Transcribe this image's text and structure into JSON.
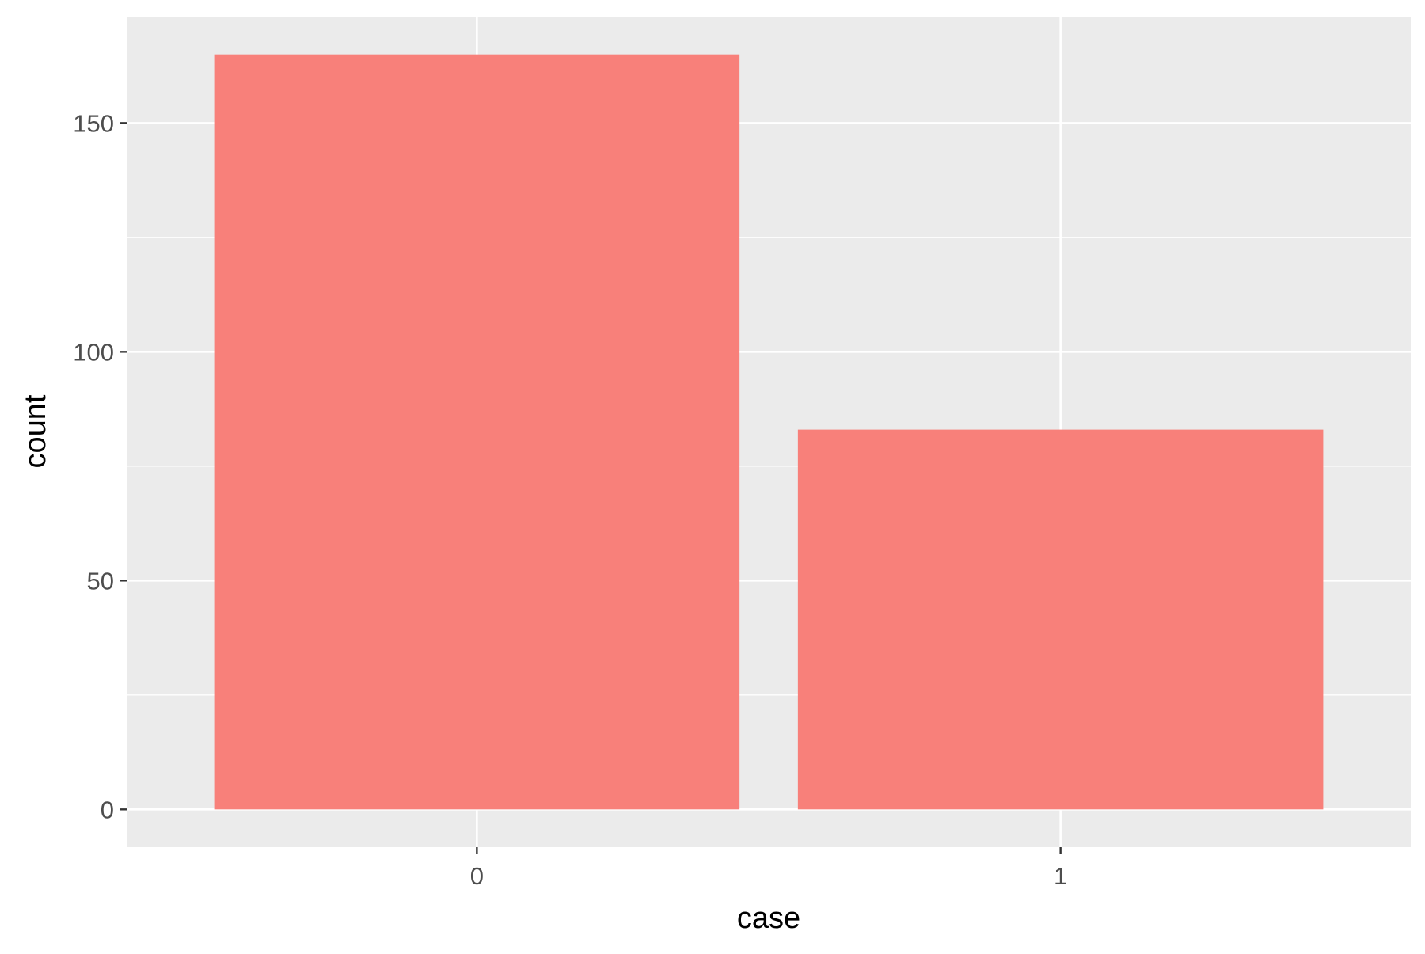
{
  "chart_data": {
    "type": "bar",
    "categories": [
      "0",
      "1"
    ],
    "values": [
      165,
      83
    ],
    "title": "",
    "xlabel": "case",
    "ylabel": "count",
    "ylim": [
      -8.25,
      173.25
    ],
    "y_ticks": [
      0,
      50,
      100,
      150
    ],
    "y_tick_labels": [
      "0",
      "50",
      "100",
      "150"
    ],
    "grid": true,
    "legend": "none",
    "colors": {
      "bar": "#F8807A",
      "panel_background": "#EBEBEB",
      "grid_major": "#FFFFFF",
      "tick_text": "#4D4D4D",
      "axis_title": "#000000",
      "tick_mark": "#333333"
    }
  }
}
